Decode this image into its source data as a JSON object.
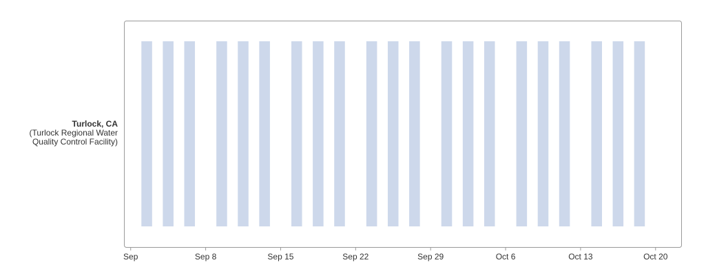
{
  "chart_data": {
    "type": "timeline",
    "category": "Turlock, CA",
    "facility_lines": [
      "(Turlock Regional Water",
      "Quality Control Facility)"
    ],
    "x": [
      "09-02",
      "09-04",
      "09-06",
      "09-09",
      "09-11",
      "09-13",
      "09-16",
      "09-18",
      "09-20",
      "09-23",
      "09-25",
      "09-27",
      "09-30",
      "10-02",
      "10-04",
      "10-07",
      "10-09",
      "10-11",
      "10-14",
      "10-16",
      "10-18"
    ],
    "color": "#cdd8eb",
    "xlim": [
      "08-31 09:00",
      "10-22 11:00"
    ],
    "xticks": [
      {
        "value": "09-01",
        "label": "Sep"
      },
      {
        "value": "09-08",
        "label": "Sep 8"
      },
      {
        "value": "09-15",
        "label": "Sep 15"
      },
      {
        "value": "09-22",
        "label": "Sep 22"
      },
      {
        "value": "09-29",
        "label": "Sep 29"
      },
      {
        "value": "10-06",
        "label": "Oct 6"
      },
      {
        "value": "10-13",
        "label": "Oct 13"
      },
      {
        "value": "10-20",
        "label": "Oct 20"
      }
    ]
  }
}
